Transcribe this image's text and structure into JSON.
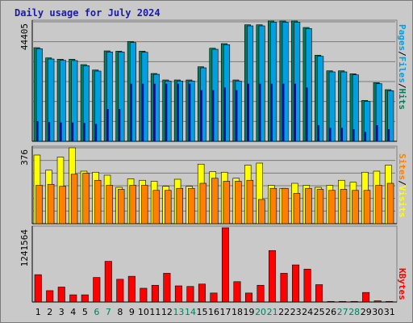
{
  "title": "Daily usage for July 2024",
  "colors": {
    "hits": "#008060",
    "files": "#00a0e0",
    "pages": "#1010a0",
    "visits": "#ffff00",
    "sites": "#ff8000",
    "kbytes": "#ff0000",
    "weekday": "#000000",
    "weekend": "#008060"
  },
  "chart_data": [
    {
      "type": "bar",
      "name": "hits-files-pages",
      "categories": [
        "1",
        "2",
        "3",
        "4",
        "5",
        "6",
        "7",
        "8",
        "9",
        "10",
        "11",
        "12",
        "13",
        "14",
        "15",
        "16",
        "17",
        "18",
        "19",
        "20",
        "21",
        "22",
        "23",
        "24",
        "25",
        "26",
        "27",
        "28",
        "29",
        "30",
        "31"
      ],
      "weekend": [
        6,
        7,
        13,
        14,
        20,
        21,
        27,
        28
      ],
      "ymax_label": "44405",
      "ymax": 44405,
      "side_labels": [
        "Pages",
        "/",
        "Files",
        "/",
        "Hits"
      ],
      "series": [
        {
          "name": "Hits",
          "values": [
            34800,
            31000,
            30500,
            30500,
            28500,
            26500,
            33600,
            33500,
            37100,
            33500,
            25200,
            22800,
            22800,
            22800,
            27700,
            34600,
            36300,
            22800,
            43300,
            43300,
            44700,
            44700,
            44700,
            42300,
            32000,
            26200,
            26200,
            25100,
            15200,
            21800,
            19200
          ]
        },
        {
          "name": "Files",
          "values": [
            34400,
            30600,
            30100,
            30000,
            28100,
            26100,
            33200,
            33200,
            36700,
            33100,
            24900,
            22400,
            22400,
            22400,
            27300,
            34200,
            35900,
            22400,
            42900,
            42900,
            44200,
            44200,
            44200,
            41900,
            31600,
            25800,
            25800,
            24700,
            14800,
            21400,
            18800
          ]
        },
        {
          "name": "Pages",
          "values": [
            7500,
            7200,
            7000,
            7000,
            6800,
            6500,
            12000,
            12000,
            21400,
            21400,
            21400,
            21400,
            21400,
            21400,
            19000,
            19000,
            20000,
            19000,
            21400,
            21400,
            21400,
            21400,
            21400,
            20000,
            6000,
            5000,
            5000,
            4500,
            3500,
            6000,
            4500
          ]
        }
      ]
    },
    {
      "type": "bar",
      "name": "visits-sites",
      "categories": [
        "1",
        "2",
        "3",
        "4",
        "5",
        "6",
        "7",
        "8",
        "9",
        "10",
        "11",
        "12",
        "13",
        "14",
        "15",
        "16",
        "17",
        "18",
        "19",
        "20",
        "21",
        "22",
        "23",
        "24",
        "25",
        "26",
        "27",
        "28",
        "29",
        "30",
        "31"
      ],
      "ymax_label": "376",
      "ymax": 376,
      "side_labels": [
        "Sites",
        "/",
        "Visits"
      ],
      "series": [
        {
          "name": "Visits",
          "values": [
            340,
            265,
            330,
            376,
            260,
            255,
            240,
            180,
            222,
            215,
            210,
            185,
            220,
            185,
            295,
            258,
            255,
            225,
            290,
            300,
            190,
            175,
            200,
            190,
            180,
            190,
            215,
            205,
            255,
            260,
            290
          ]
        },
        {
          "name": "Sites",
          "values": [
            190,
            195,
            185,
            245,
            250,
            215,
            190,
            170,
            190,
            190,
            165,
            165,
            175,
            175,
            200,
            225,
            210,
            210,
            215,
            120,
            175,
            175,
            150,
            175,
            170,
            165,
            170,
            165,
            165,
            190,
            200
          ]
        }
      ]
    },
    {
      "type": "bar",
      "name": "kbytes",
      "categories": [
        "1",
        "2",
        "3",
        "4",
        "5",
        "6",
        "7",
        "8",
        "9",
        "10",
        "11",
        "12",
        "13",
        "14",
        "15",
        "16",
        "17",
        "18",
        "19",
        "20",
        "21",
        "22",
        "23",
        "24",
        "25",
        "26",
        "27",
        "28",
        "29",
        "30",
        "31"
      ],
      "ymax_label": "1241564",
      "ymax": 1241564,
      "side_labels": [
        "KBytes"
      ],
      "series": [
        {
          "name": "KBytes",
          "values": [
            457000,
            190000,
            250000,
            120000,
            120000,
            410000,
            680000,
            380000,
            430000,
            230000,
            280000,
            480000,
            270000,
            260000,
            300000,
            150000,
            1241564,
            340000,
            150000,
            280000,
            860000,
            480000,
            620000,
            550000,
            290000,
            10000,
            10000,
            10000,
            160000,
            20000,
            10000
          ]
        }
      ]
    }
  ]
}
